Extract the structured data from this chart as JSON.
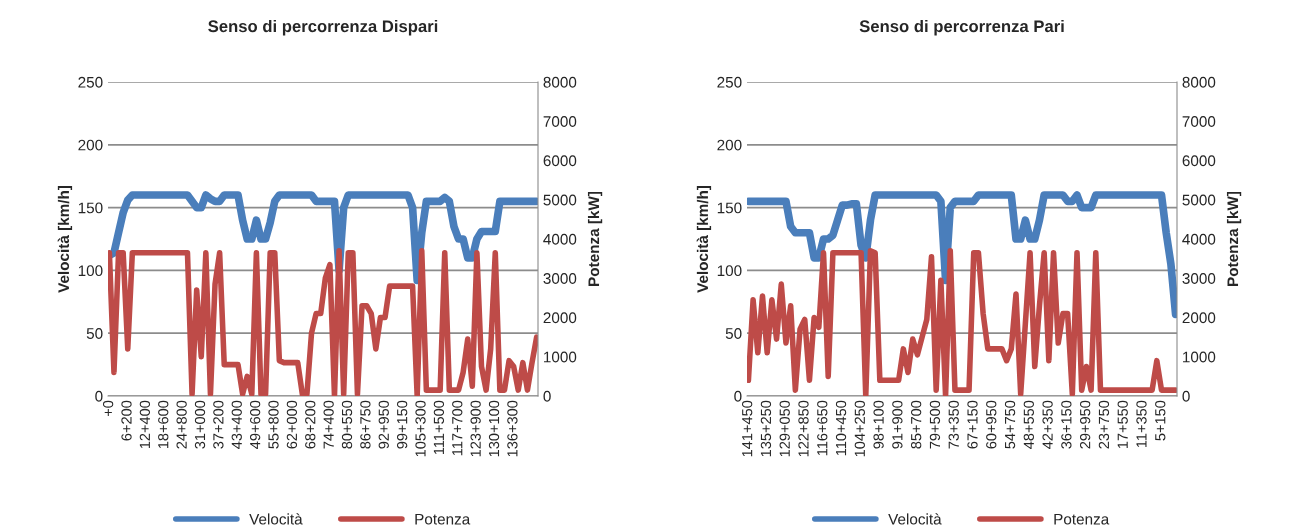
{
  "chart_data": [
    {
      "type": "line",
      "title": "Senso di percorrenza Dispari",
      "ylabel": "Velocità [km/h]",
      "y2label": "Potenza [kW]",
      "categories": [
        "+0",
        null,
        null,
        null,
        "6+200",
        null,
        null,
        null,
        "12+400",
        null,
        null,
        null,
        "18+600",
        null,
        null,
        null,
        "24+800",
        null,
        null,
        null,
        "31+000",
        null,
        null,
        null,
        "37+200",
        null,
        null,
        null,
        "43+400",
        null,
        null,
        null,
        "49+600",
        null,
        null,
        null,
        "55+800",
        null,
        null,
        null,
        "62+000",
        null,
        null,
        null,
        "68+200",
        null,
        null,
        null,
        "74+400",
        null,
        null,
        null,
        "80+550",
        null,
        null,
        null,
        "86+750",
        null,
        null,
        null,
        "92+950",
        null,
        null,
        null,
        "99+150",
        null,
        null,
        null,
        "105+300",
        null,
        null,
        null,
        "111+500",
        null,
        null,
        null,
        "117+700",
        null,
        null,
        null,
        "123+900",
        null,
        null,
        null,
        "130+100",
        null,
        null,
        null,
        "136+300",
        null,
        null,
        null,
        null,
        null
      ],
      "ylim": [
        0,
        250
      ],
      "yticks": [
        0,
        50,
        100,
        150,
        200,
        250
      ],
      "y2lim": [
        0,
        8000
      ],
      "y2ticks": [
        0,
        1000,
        2000,
        3000,
        4000,
        5000,
        6000,
        7000,
        8000
      ],
      "grid": "y",
      "legend": "bottom",
      "series": [
        {
          "name": "Velocità",
          "color": "#4a7ebb",
          "values": [
            112,
            114,
            130,
            146,
            156,
            160,
            160,
            160,
            160,
            160,
            160,
            160,
            160,
            160,
            160,
            160,
            160,
            160,
            155,
            150,
            150,
            160,
            157,
            155,
            155,
            160,
            160,
            160,
            160,
            140,
            125,
            125,
            140,
            125,
            125,
            138,
            155,
            160,
            160,
            160,
            160,
            160,
            160,
            160,
            160,
            155,
            155,
            155,
            155,
            155,
            100,
            150,
            160,
            160,
            160,
            160,
            160,
            160,
            160,
            160,
            160,
            160,
            160,
            160,
            160,
            160,
            150,
            92,
            130,
            155,
            155,
            155,
            155,
            158,
            155,
            135,
            125,
            125,
            110,
            110,
            125,
            131,
            131,
            131,
            131,
            155,
            155,
            155,
            155,
            155,
            155,
            155,
            155,
            155
          ]
        },
        {
          "name": "Potenza",
          "color": "#be4b48",
          "axis": "y2",
          "values": [
            3650,
            600,
            3650,
            3650,
            1200,
            3650,
            3650,
            3650,
            3650,
            3650,
            3650,
            3650,
            3650,
            3650,
            3650,
            3650,
            3650,
            3650,
            50,
            2700,
            1000,
            3650,
            50,
            2850,
            3650,
            800,
            800,
            800,
            800,
            50,
            500,
            50,
            3650,
            50,
            50,
            3650,
            3650,
            900,
            850,
            850,
            850,
            850,
            50,
            50,
            1600,
            2100,
            2100,
            3000,
            3350,
            0,
            3700,
            50,
            3650,
            3650,
            50,
            2300,
            2300,
            2100,
            1200,
            2000,
            2000,
            2800,
            2800,
            2800,
            2800,
            2800,
            2800,
            0,
            3700,
            150,
            150,
            150,
            150,
            3650,
            150,
            150,
            150,
            600,
            1450,
            250,
            3650,
            750,
            150,
            1200,
            3650,
            150,
            150,
            900,
            750,
            150,
            850,
            150,
            850,
            1500
          ]
        }
      ]
    },
    {
      "type": "line",
      "title": "Senso di percorrenza Pari",
      "ylabel": "Velocità [km/h]",
      "y2label": "Potenza [kW]",
      "categories": [
        "141+450",
        null,
        null,
        null,
        "135+250",
        null,
        null,
        null,
        "129+050",
        null,
        null,
        null,
        "122+850",
        null,
        null,
        null,
        "116+650",
        null,
        null,
        null,
        "110+450",
        null,
        null,
        null,
        "104+250",
        null,
        null,
        null,
        "98+100",
        null,
        null,
        null,
        "91+900",
        null,
        null,
        null,
        "85+700",
        null,
        null,
        null,
        "79+500",
        null,
        null,
        null,
        "73+350",
        null,
        null,
        null,
        "67+150",
        null,
        null,
        null,
        "60+950",
        null,
        null,
        null,
        "54+750",
        null,
        null,
        null,
        "48+550",
        null,
        null,
        null,
        "42+350",
        null,
        null,
        null,
        "36+150",
        null,
        null,
        null,
        "29+950",
        null,
        null,
        null,
        "23+750",
        null,
        null,
        null,
        "17+550",
        null,
        null,
        null,
        "11+350",
        null,
        null,
        null,
        "5+150",
        null,
        null,
        null
      ],
      "ylim": [
        0,
        250
      ],
      "yticks": [
        0,
        50,
        100,
        150,
        200,
        250
      ],
      "y2lim": [
        0,
        8000
      ],
      "y2ticks": [
        0,
        1000,
        2000,
        3000,
        4000,
        5000,
        6000,
        7000,
        8000
      ],
      "grid": "y",
      "legend": "bottom",
      "series": [
        {
          "name": "Velocità",
          "color": "#4a7ebb",
          "values": [
            155,
            155,
            155,
            155,
            155,
            155,
            155,
            155,
            155,
            135,
            130,
            130,
            130,
            130,
            110,
            110,
            125,
            125,
            128,
            140,
            152,
            152,
            153,
            153,
            120,
            110,
            140,
            160,
            160,
            160,
            160,
            160,
            160,
            160,
            160,
            160,
            160,
            160,
            160,
            160,
            160,
            155,
            92,
            150,
            155,
            155,
            155,
            155,
            155,
            160,
            160,
            160,
            160,
            160,
            160,
            160,
            160,
            125,
            125,
            140,
            125,
            125,
            140,
            160,
            160,
            160,
            160,
            160,
            155,
            155,
            160,
            150,
            150,
            150,
            160,
            160,
            160,
            160,
            160,
            160,
            160,
            160,
            160,
            160,
            160,
            160,
            160,
            160,
            160,
            130,
            105,
            65
          ]
        },
        {
          "name": "Potenza",
          "color": "#be4b48",
          "axis": "y2",
          "values": [
            400,
            2450,
            1100,
            2550,
            1100,
            2450,
            1450,
            2850,
            1350,
            2300,
            150,
            1700,
            1950,
            400,
            2000,
            1750,
            3650,
            500,
            3650,
            3650,
            3650,
            3650,
            3650,
            3650,
            3650,
            0,
            3700,
            3650,
            400,
            400,
            400,
            400,
            400,
            1200,
            600,
            1450,
            1050,
            1500,
            1950,
            3550,
            150,
            2950,
            0,
            3700,
            150,
            150,
            150,
            150,
            3650,
            3650,
            2100,
            1200,
            1200,
            1200,
            1200,
            900,
            1200,
            2600,
            50,
            1850,
            3650,
            750,
            2300,
            3650,
            900,
            3650,
            1350,
            2100,
            2100,
            50,
            3650,
            150,
            750,
            150,
            3650,
            150,
            150,
            150,
            150,
            150,
            150,
            150,
            150,
            150,
            150,
            150,
            150,
            900,
            150,
            150,
            150,
            150
          ]
        }
      ]
    }
  ]
}
